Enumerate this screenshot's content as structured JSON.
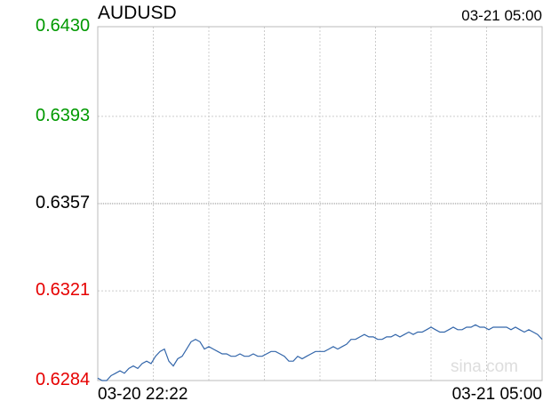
{
  "header": {
    "symbol": "AUDUSD",
    "timestamp": "03-21 05:00"
  },
  "watermark": "sina.com",
  "colors": {
    "up": "#009900",
    "down": "#e60000",
    "neutral": "#000000",
    "line": "#3366aa",
    "grid": "#cccccc"
  },
  "chart_data": {
    "type": "line",
    "title": "AUDUSD",
    "x_start_label": "03-20 22:22",
    "x_end_label": "03-21 05:00",
    "ylim": [
      0.6284,
      0.643
    ],
    "y_ticks": [
      {
        "label": "0.6430",
        "value": 0.643,
        "tone": "up"
      },
      {
        "label": "0.6393",
        "value": 0.6393,
        "tone": "up"
      },
      {
        "label": "0.6357",
        "value": 0.6357,
        "tone": "neutral"
      },
      {
        "label": "0.6321",
        "value": 0.6321,
        "tone": "down"
      },
      {
        "label": "0.6284",
        "value": 0.6284,
        "tone": "down"
      }
    ],
    "reference_value": 0.6357,
    "grid": true,
    "series": [
      {
        "x": [
          0,
          0.01,
          0.02,
          0.03,
          0.04,
          0.05,
          0.06,
          0.07,
          0.08,
          0.09,
          0.1,
          0.11,
          0.12,
          0.13,
          0.14,
          0.15,
          0.16,
          0.17,
          0.18,
          0.19,
          0.2,
          0.21,
          0.22,
          0.23,
          0.24,
          0.25,
          0.26,
          0.27,
          0.28,
          0.29,
          0.3,
          0.31,
          0.32,
          0.33,
          0.34,
          0.35,
          0.36,
          0.37,
          0.38,
          0.39,
          0.4,
          0.41,
          0.42,
          0.43,
          0.44,
          0.45,
          0.46,
          0.47,
          0.48,
          0.49,
          0.5,
          0.51,
          0.52,
          0.53,
          0.54,
          0.55,
          0.56,
          0.57,
          0.58,
          0.59,
          0.6,
          0.61,
          0.62,
          0.63,
          0.64,
          0.65,
          0.66,
          0.67,
          0.68,
          0.69,
          0.7,
          0.71,
          0.72,
          0.73,
          0.74,
          0.75,
          0.76,
          0.77,
          0.78,
          0.79,
          0.8,
          0.81,
          0.82,
          0.83,
          0.84,
          0.85,
          0.86,
          0.87,
          0.88,
          0.89,
          0.9,
          0.91,
          0.92,
          0.93,
          0.94,
          0.95,
          0.96,
          0.97,
          0.98,
          0.99,
          1.0
        ],
        "values": [
          0.6285,
          0.6284,
          0.6284,
          0.6286,
          0.6287,
          0.6288,
          0.6287,
          0.6289,
          0.629,
          0.6289,
          0.6291,
          0.6292,
          0.6291,
          0.6294,
          0.6296,
          0.6297,
          0.6292,
          0.629,
          0.6293,
          0.6294,
          0.6297,
          0.63,
          0.6301,
          0.63,
          0.6297,
          0.6298,
          0.6297,
          0.6296,
          0.6295,
          0.6295,
          0.6294,
          0.6294,
          0.6295,
          0.6294,
          0.6294,
          0.6295,
          0.6294,
          0.6294,
          0.6295,
          0.6296,
          0.6296,
          0.6295,
          0.6294,
          0.6292,
          0.6292,
          0.6294,
          0.6293,
          0.6294,
          0.6295,
          0.6296,
          0.6296,
          0.6296,
          0.6297,
          0.6298,
          0.6297,
          0.6298,
          0.6299,
          0.6301,
          0.6301,
          0.6302,
          0.6303,
          0.6302,
          0.6302,
          0.6301,
          0.6301,
          0.6302,
          0.6302,
          0.6303,
          0.6302,
          0.6303,
          0.6304,
          0.6303,
          0.6304,
          0.6304,
          0.6305,
          0.6306,
          0.6305,
          0.6304,
          0.6304,
          0.6305,
          0.6306,
          0.6305,
          0.6305,
          0.6306,
          0.6306,
          0.6307,
          0.6306,
          0.6306,
          0.6305,
          0.6306,
          0.6306,
          0.6306,
          0.6306,
          0.6305,
          0.6306,
          0.6305,
          0.6304,
          0.6305,
          0.6304,
          0.6303,
          0.6301
        ]
      }
    ]
  }
}
